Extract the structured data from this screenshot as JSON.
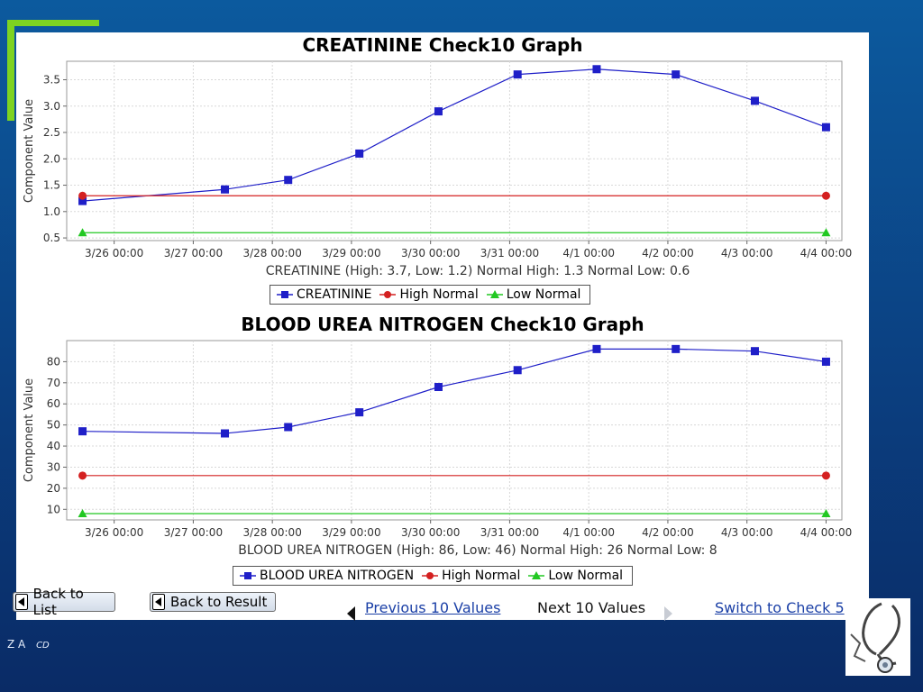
{
  "footer": {
    "left_text": "Z A",
    "left_sub": "CD"
  },
  "buttons": {
    "back_to_list": "Back to List",
    "back_to_result": "Back to Result"
  },
  "nav": {
    "previous": "Previous 10 Values",
    "next": "Next 10 Values",
    "switch": "Switch to Check 5"
  },
  "colors": {
    "series": "#1f1fc8",
    "high_normal": "#d42020",
    "low_normal": "#22c822",
    "panel": "#ffffff",
    "accent": "#7ed321"
  },
  "chart_data": [
    {
      "type": "line",
      "title": "CREATININE Check10 Graph",
      "ylabel": "Component Value",
      "xlabel": "CREATININE (High: 3.7, Low: 1.2) Normal High: 1.3 Normal Low: 0.6",
      "x_ticks": [
        "3/26 00:00",
        "3/27 00:00",
        "3/28 00:00",
        "3/29 00:00",
        "3/30 00:00",
        "3/31 00:00",
        "4/1 00:00",
        "4/2 00:00",
        "4/3 00:00",
        "4/4 00:00"
      ],
      "xlim": [
        -0.6,
        9.2
      ],
      "ylim": [
        0.45,
        3.85
      ],
      "y_ticks": [
        0.5,
        1.0,
        1.5,
        2.0,
        2.5,
        3.0,
        3.5
      ],
      "y_tick_labels": [
        "0.5",
        "1.0",
        "1.5",
        "2.0",
        "2.5",
        "3.0",
        "3.5"
      ],
      "grid": true,
      "legend_position": "bottom-center",
      "series": [
        {
          "name": "CREATININE",
          "marker": "square",
          "x": [
            -0.4,
            1.4,
            2.2,
            3.1,
            4.1,
            5.1,
            6.1,
            7.1,
            8.1,
            9.0
          ],
          "values": [
            1.2,
            1.42,
            1.6,
            2.1,
            2.9,
            3.6,
            3.7,
            3.6,
            3.1,
            2.6
          ]
        },
        {
          "name": "High Normal",
          "marker": "circle",
          "x": [
            -0.4,
            9.0
          ],
          "values": [
            1.3,
            1.3
          ]
        },
        {
          "name": "Low Normal",
          "marker": "triangle",
          "x": [
            -0.4,
            9.0
          ],
          "values": [
            0.6,
            0.6
          ]
        }
      ]
    },
    {
      "type": "line",
      "title": "BLOOD UREA NITROGEN Check10 Graph",
      "ylabel": "Component Value",
      "xlabel": "BLOOD UREA NITROGEN (High: 86, Low: 46) Normal High: 26 Normal Low: 8",
      "x_ticks": [
        "3/26 00:00",
        "3/27 00:00",
        "3/28 00:00",
        "3/29 00:00",
        "3/30 00:00",
        "3/31 00:00",
        "4/1 00:00",
        "4/2 00:00",
        "4/3 00:00",
        "4/4 00:00"
      ],
      "xlim": [
        -0.6,
        9.2
      ],
      "ylim": [
        5,
        90
      ],
      "y_ticks": [
        10,
        20,
        30,
        40,
        50,
        60,
        70,
        80
      ],
      "y_tick_labels": [
        "10",
        "20",
        "30",
        "40",
        "50",
        "60",
        "70",
        "80"
      ],
      "grid": true,
      "legend_position": "bottom-center",
      "series": [
        {
          "name": "BLOOD UREA NITROGEN",
          "marker": "square",
          "x": [
            -0.4,
            1.4,
            2.2,
            3.1,
            4.1,
            5.1,
            6.1,
            7.1,
            8.1,
            9.0
          ],
          "values": [
            47,
            46,
            49,
            56,
            68,
            76,
            86,
            86,
            85,
            80
          ]
        },
        {
          "name": "High Normal",
          "marker": "circle",
          "x": [
            -0.4,
            9.0
          ],
          "values": [
            26,
            26
          ]
        },
        {
          "name": "Low Normal",
          "marker": "triangle",
          "x": [
            -0.4,
            9.0
          ],
          "values": [
            8,
            8
          ]
        }
      ]
    }
  ]
}
